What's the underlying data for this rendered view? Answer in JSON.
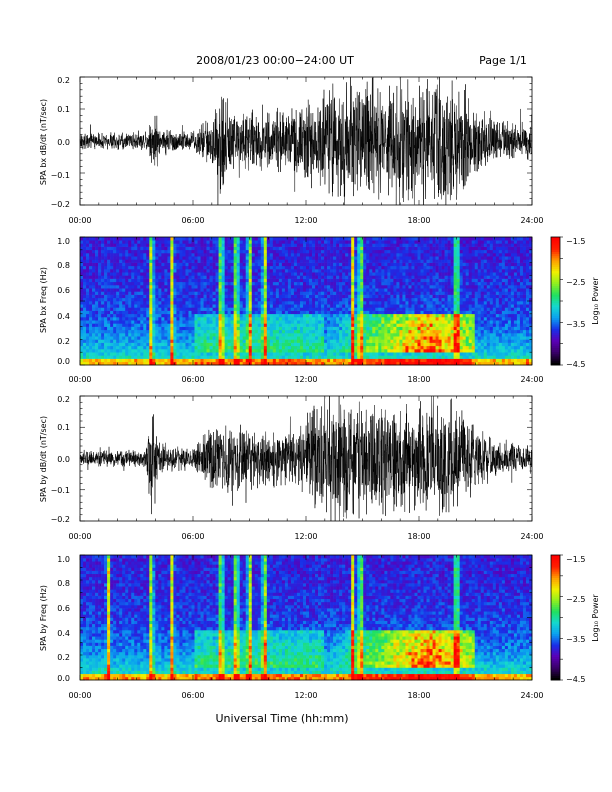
{
  "header": {
    "title": "2008/01/23  00:00−24:00 UT",
    "page": "Page 1/1"
  },
  "xlabel": "Universal Time (hh:mm)",
  "colors": {
    "trace": "#000000",
    "colormap": [
      "#000000",
      "#3a006a",
      "#5a00b8",
      "#1a2ee8",
      "#0aa0f0",
      "#15d8d0",
      "#20e060",
      "#8ef020",
      "#f0f000",
      "#ffa000",
      "#ff2000",
      "#ff0000"
    ]
  },
  "chart_data": [
    {
      "type": "line",
      "ylabel": "SPA bx dB/dt (nT/sec)",
      "x_ticks": [
        "00:00",
        "06:00",
        "12:00",
        "18:00",
        "24:00"
      ],
      "y_ticks": [
        "0.2",
        "0.1",
        "0.0",
        "−0.1",
        "−0.2"
      ],
      "xlim": [
        0,
        24
      ],
      "ylim": [
        -0.2,
        0.2
      ],
      "x_unit": "hours UT",
      "amplitude_envelope": {
        "hours": [
          0,
          1.5,
          3.5,
          4.0,
          4.2,
          6.0,
          7.0,
          7.6,
          8.0,
          10.0,
          11.5,
          12.5,
          13.5,
          14.0,
          15.0,
          16.0,
          17.0,
          18.0,
          19.0,
          20.0,
          21.0,
          22.0,
          24.0
        ],
        "amplitude": [
          0.03,
          0.03,
          0.035,
          0.12,
          0.05,
          0.035,
          0.1,
          0.22,
          0.12,
          0.1,
          0.12,
          0.17,
          0.2,
          0.25,
          0.22,
          0.2,
          0.22,
          0.2,
          0.25,
          0.22,
          0.13,
          0.08,
          0.06
        ]
      }
    },
    {
      "type": "heatmap",
      "ylabel": "SPA bx Freq (Hz)",
      "x_ticks": [
        "00:00",
        "06:00",
        "12:00",
        "18:00",
        "24:00"
      ],
      "y_ticks": [
        "1.0",
        "0.8",
        "0.6",
        "0.4",
        "0.2",
        "0.0"
      ],
      "xlim": [
        0,
        24
      ],
      "ylim": [
        0,
        1.0
      ],
      "colorbar": {
        "label": "Log₁₀ Power",
        "range": [
          -4.5,
          -1.5
        ],
        "ticks": [
          "−1.5",
          "−2.5",
          "−3.5",
          "−4.5"
        ]
      },
      "features": {
        "broadband_spikes_hours": [
          3.8,
          4.9,
          7.5,
          8.3,
          9.0,
          9.8,
          14.5,
          14.9,
          20.0
        ],
        "enhanced_band_hours": [
          13.0,
          21.0
        ],
        "enhanced_band_freq_hz": [
          0.1,
          0.4
        ]
      }
    },
    {
      "type": "line",
      "ylabel": "SPA by dB/dt (nT/sec)",
      "x_ticks": [
        "00:00",
        "06:00",
        "12:00",
        "18:00",
        "24:00"
      ],
      "y_ticks": [
        "0.2",
        "0.1",
        "0.0",
        "−0.1",
        "−0.2"
      ],
      "xlim": [
        0,
        24
      ],
      "ylim": [
        -0.2,
        0.2
      ],
      "x_unit": "hours UT",
      "amplitude_envelope": {
        "hours": [
          0,
          1.5,
          3.5,
          3.8,
          4.2,
          6.0,
          7.0,
          8.0,
          10.0,
          11.5,
          12.5,
          13.5,
          14.0,
          15.0,
          16.0,
          17.0,
          18.0,
          19.0,
          20.0,
          21.0,
          22.0,
          24.0
        ],
        "amplitude": [
          0.03,
          0.03,
          0.035,
          0.2,
          0.06,
          0.035,
          0.12,
          0.13,
          0.1,
          0.1,
          0.2,
          0.22,
          0.22,
          0.2,
          0.22,
          0.2,
          0.2,
          0.22,
          0.2,
          0.13,
          0.07,
          0.05
        ]
      }
    },
    {
      "type": "heatmap",
      "ylabel": "SPA by Freq (Hz)",
      "x_ticks": [
        "00:00",
        "06:00",
        "12:00",
        "18:00",
        "24:00"
      ],
      "y_ticks": [
        "1.0",
        "0.8",
        "0.6",
        "0.4",
        "0.2",
        "0.0"
      ],
      "xlim": [
        0,
        24
      ],
      "ylim": [
        0,
        1.0
      ],
      "colorbar": {
        "label": "Log₁₀ Power",
        "range": [
          -4.5,
          -1.5
        ],
        "ticks": [
          "−1.5",
          "−2.5",
          "−3.5",
          "−4.5"
        ]
      },
      "features": {
        "broadband_spikes_hours": [
          1.5,
          3.8,
          4.9,
          7.5,
          8.3,
          9.0,
          9.8,
          14.5,
          14.9,
          20.0
        ],
        "enhanced_band_hours": [
          13.0,
          21.0
        ],
        "enhanced_band_freq_hz": [
          0.1,
          0.4
        ]
      }
    }
  ]
}
